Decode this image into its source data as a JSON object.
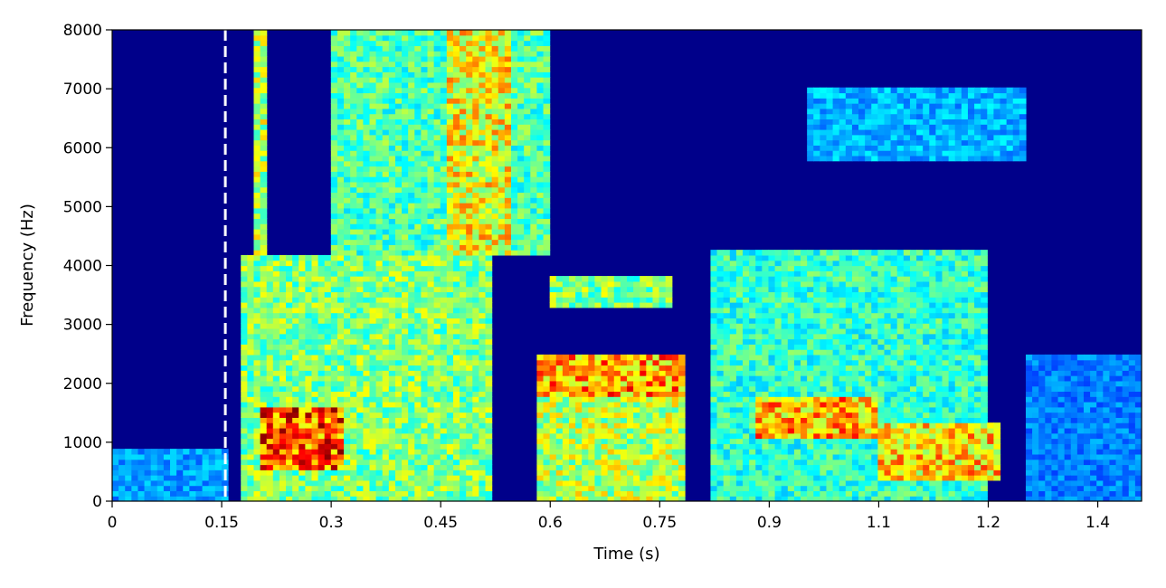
{
  "chart_data": {
    "type": "heatmap",
    "subtype": "spectrogram",
    "title": "",
    "xlabel": "Time (s)",
    "ylabel": "Frequency (Hz)",
    "xlim": [
      0,
      1.41
    ],
    "ylim": [
      0,
      8000
    ],
    "xticks": [
      0,
      0.15,
      0.3,
      0.45,
      0.6,
      0.75,
      0.9,
      1.05,
      1.2,
      1.35
    ],
    "xtick_labels": [
      "0",
      "0.15",
      "0.3",
      "0.45",
      "0.6",
      "0.75",
      "0.9",
      "1.1",
      "1.2",
      "1.4"
    ],
    "yticks": [
      0,
      1000,
      2000,
      3000,
      4000,
      5000,
      6000,
      7000,
      8000
    ],
    "ytick_labels": [
      "0",
      "1000",
      "2000",
      "3000",
      "4000",
      "5000",
      "6000",
      "7000",
      "8000"
    ],
    "colormap": "jet",
    "grid": false,
    "marker_line": {
      "x": 0.155,
      "style": "dashed",
      "color": "#ffffff"
    },
    "energy_regions": [
      {
        "t": [
          0.0,
          0.155
        ],
        "f": [
          0,
          900
        ],
        "level": 0.28
      },
      {
        "t": [
          0.18,
          0.52
        ],
        "f": [
          0,
          4200
        ],
        "level": 0.5
      },
      {
        "t": [
          0.2,
          0.32
        ],
        "f": [
          500,
          1600
        ],
        "level": 0.8
      },
      {
        "t": [
          0.19,
          0.21
        ],
        "f": [
          4200,
          8000
        ],
        "level": 0.55
      },
      {
        "t": [
          0.3,
          0.6
        ],
        "f": [
          4200,
          8000
        ],
        "level": 0.45
      },
      {
        "t": [
          0.46,
          0.55
        ],
        "f": [
          4200,
          8000
        ],
        "level": 0.62
      },
      {
        "t": [
          0.58,
          0.78
        ],
        "f": [
          1800,
          2500
        ],
        "level": 0.72
      },
      {
        "t": [
          0.58,
          0.78
        ],
        "f": [
          0,
          1800
        ],
        "level": 0.55
      },
      {
        "t": [
          0.6,
          0.77
        ],
        "f": [
          3300,
          3800
        ],
        "level": 0.5
      },
      {
        "t": [
          0.82,
          1.2
        ],
        "f": [
          0,
          4300
        ],
        "level": 0.42
      },
      {
        "t": [
          0.88,
          1.05
        ],
        "f": [
          1100,
          1800
        ],
        "level": 0.7
      },
      {
        "t": [
          1.05,
          1.22
        ],
        "f": [
          400,
          1300
        ],
        "level": 0.66
      },
      {
        "t": [
          0.95,
          1.25
        ],
        "f": [
          5800,
          7000
        ],
        "level": 0.3
      },
      {
        "t": [
          1.25,
          1.41
        ],
        "f": [
          0,
          2500
        ],
        "level": 0.25
      }
    ]
  }
}
